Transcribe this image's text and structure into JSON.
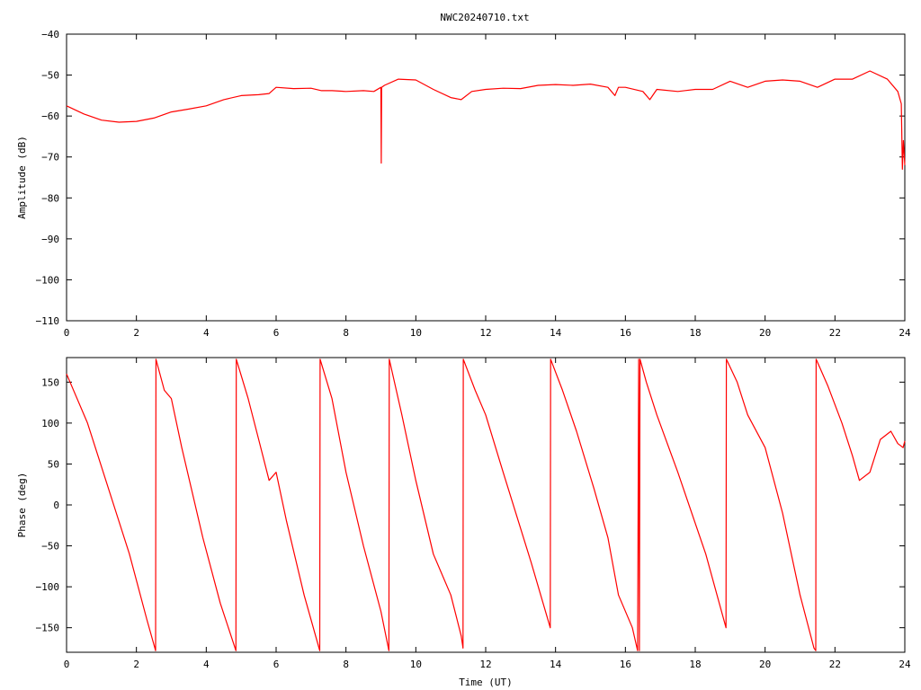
{
  "title": "NWC20240710.txt",
  "chart_data": [
    {
      "type": "line",
      "title": "NWC20240710.txt",
      "xlabel": "",
      "ylabel": "Amplitude (dB)",
      "xlim": [
        0,
        24
      ],
      "ylim": [
        -110,
        -40
      ],
      "xticks": [
        0,
        2,
        4,
        6,
        8,
        10,
        12,
        14,
        16,
        18,
        20,
        22,
        24
      ],
      "yticks": [
        -110,
        -100,
        -90,
        -80,
        -70,
        -60,
        -50,
        -40
      ],
      "series_color": "#ff0000",
      "series": [
        {
          "x": [
            0,
            0.5,
            1.0,
            1.5,
            2.0,
            2.5,
            3.0,
            3.5,
            4.0,
            4.5,
            5.0,
            5.5,
            5.8,
            6.0,
            6.5,
            7.0,
            7.3,
            7.6,
            8.0,
            8.5,
            8.8,
            9.0,
            9.01,
            9.02,
            9.1,
            9.5,
            10.0,
            10.5,
            11.0,
            11.3,
            11.6,
            12.0,
            12.5,
            13.0,
            13.5,
            14.0,
            14.5,
            15.0,
            15.5,
            15.7,
            15.8,
            16.0,
            16.5,
            16.7,
            16.9,
            17.5,
            18.0,
            18.5,
            19.0,
            19.5,
            20.0,
            20.5,
            21.0,
            21.5,
            22.0,
            22.5,
            23.0,
            23.5,
            23.8,
            23.9,
            23.93,
            23.96,
            24.0
          ],
          "values": [
            -57.5,
            -59.5,
            -61,
            -61.5,
            -61.3,
            -60.5,
            -59,
            -58.3,
            -57.5,
            -56,
            -55,
            -54.8,
            -54.5,
            -53,
            -53.3,
            -53.2,
            -53.8,
            -53.8,
            -54,
            -53.8,
            -54,
            -53,
            -71.5,
            -53,
            -52.5,
            -51,
            -51.2,
            -53.5,
            -55.5,
            -56,
            -54,
            -53.5,
            -53.2,
            -53.3,
            -52.5,
            -52.3,
            -52.5,
            -52.2,
            -53,
            -55,
            -53,
            -53,
            -54,
            -56,
            -53.5,
            -54,
            -53.5,
            -53.5,
            -51.5,
            -53,
            -51.5,
            -51.2,
            -51.5,
            -53,
            -51,
            -51,
            -49,
            -51,
            -54,
            -57,
            -73,
            -66,
            -72
          ]
        }
      ]
    },
    {
      "type": "line",
      "title": "",
      "xlabel": "Time (UT)",
      "ylabel": "Phase (deg)",
      "xlim": [
        0,
        24
      ],
      "ylim": [
        -180,
        180
      ],
      "xticks": [
        0,
        2,
        4,
        6,
        8,
        10,
        12,
        14,
        16,
        18,
        20,
        22,
        24
      ],
      "yticks": [
        -150,
        -100,
        -50,
        0,
        50,
        100,
        150
      ],
      "series_color": "#ff0000",
      "series": [
        {
          "x": [
            0,
            0.6,
            1.2,
            1.8,
            2.3,
            2.55,
            2.56,
            2.8,
            3.0,
            3.3,
            3.9,
            4.4,
            4.85,
            4.86,
            5.2,
            5.5,
            5.8,
            6.0,
            6.3,
            6.8,
            7.25,
            7.26,
            7.6,
            8.0,
            8.5,
            9.0,
            9.23,
            9.24,
            9.6,
            10.0,
            10.5,
            11.0,
            11.3,
            11.35,
            11.36,
            11.7,
            12.0,
            12.5,
            13.3,
            13.85,
            13.86,
            14.2,
            14.6,
            15.1,
            15.5,
            15.8,
            16.2,
            16.35,
            16.38,
            16.4,
            16.42,
            16.6,
            16.9,
            17.5,
            18.3,
            18.88,
            18.89,
            19.2,
            19.5,
            20.0,
            20.5,
            21.0,
            21.4,
            21.45,
            21.46,
            21.8,
            22.2,
            22.5,
            22.7,
            23.0,
            23.3,
            23.6,
            23.8,
            23.95,
            24.0
          ],
          "values": [
            160,
            100,
            20,
            -60,
            -140,
            -178,
            178,
            140,
            130,
            70,
            -40,
            -120,
            -178,
            178,
            130,
            80,
            30,
            40,
            -20,
            -110,
            -178,
            178,
            130,
            40,
            -50,
            -130,
            -178,
            178,
            110,
            30,
            -60,
            -110,
            -160,
            -175,
            178,
            140,
            110,
            40,
            -70,
            -150,
            178,
            140,
            90,
            20,
            -40,
            -110,
            -150,
            -178,
            178,
            -178,
            178,
            150,
            110,
            40,
            -60,
            -150,
            178,
            150,
            110,
            70,
            -10,
            -110,
            -175,
            -178,
            178,
            145,
            100,
            60,
            30,
            40,
            80,
            90,
            75,
            70,
            78
          ]
        }
      ]
    }
  ]
}
